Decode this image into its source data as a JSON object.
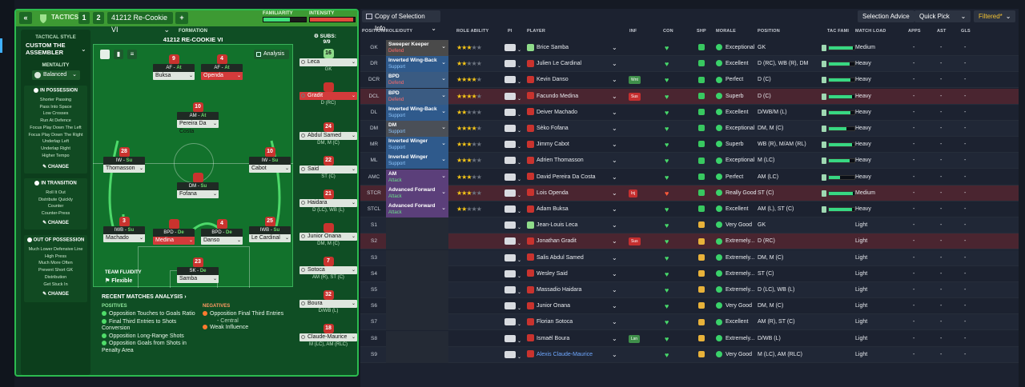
{
  "header": {
    "back_icon": "chevron-double-left",
    "tactics_label": "TACTICS",
    "tactic_slots": [
      "1",
      "2"
    ],
    "tactic_name": "41212 Re-Cookie VI",
    "add_label": "+",
    "familiarity_label": "FAMILIARITY",
    "intensity_label": "INTENSITY",
    "familiarity_level": 0.62,
    "intensity_level": 0.97
  },
  "sidebar": {
    "style_label": "TACTICAL STYLE",
    "style_name": "CUSTOM THE ASSEMBLER",
    "mentality_label": "MENTALITY",
    "mentality_value": "Balanced",
    "in_possession": {
      "title": "IN POSSESSION",
      "items": [
        "Shorter Passing",
        "Pass Into Space",
        "Low Crosses",
        "Run At Defence",
        "Focus Play Down The Left",
        "Focus Play Down The Right",
        "Underlap Left",
        "Underlap Right",
        "Higher Tempo"
      ],
      "change": "CHANGE"
    },
    "in_transition": {
      "title": "IN TRANSITION",
      "items": [
        "Roll It Out",
        "Distribute Quickly",
        "Counter",
        "Counter-Press"
      ],
      "change": "CHANGE"
    },
    "out_of_possession": {
      "title": "OUT OF POSSESSION",
      "items": [
        "Much Lower Defensive Line",
        "High Press",
        "Much More Often",
        "Prevent Short GK",
        "Distribution",
        "Get Stuck In"
      ],
      "change": "CHANGE"
    }
  },
  "pitch": {
    "formation_label": "FORMATION",
    "formation_name": "41212 RE-COOKIE VI",
    "analysis_label": "Analysis",
    "team_fluidity_label": "TEAM FLUIDITY",
    "team_fluidity_value": "Flexible",
    "players": [
      {
        "num": "9",
        "role": "AF",
        "duty": "At",
        "name": "Buksa",
        "red": false
      },
      {
        "num": "4",
        "role": "AF",
        "duty": "At",
        "name": "Openda",
        "red": true
      },
      {
        "num": "10",
        "role": "AM",
        "duty": "At",
        "name": "Pereira Da Costa",
        "red": false
      },
      {
        "num": "28",
        "role": "IW",
        "duty": "Su",
        "name": "Thomasson",
        "red": false
      },
      {
        "num": "10",
        "role": "IW",
        "duty": "Su",
        "name": "Cabot",
        "red": false
      },
      {
        "num": "",
        "role": "DM",
        "duty": "Su",
        "name": "Fofana",
        "red": false
      },
      {
        "num": "3",
        "role": "IWB",
        "duty": "Su",
        "name": "Machado",
        "red": false
      },
      {
        "num": "",
        "role": "BPD",
        "duty": "De",
        "name": "Medina",
        "red": true
      },
      {
        "num": "4",
        "role": "BPD",
        "duty": "De",
        "name": "Danso",
        "red": false
      },
      {
        "num": "25",
        "role": "IWB",
        "duty": "Su",
        "name": "Le Cardinal",
        "red": false
      },
      {
        "num": "23",
        "role": "SK",
        "duty": "De",
        "name": "Samba",
        "red": false
      }
    ]
  },
  "subs": {
    "label": "SUBS:",
    "count": "9/9",
    "players": [
      {
        "num": "16",
        "name": "Leca",
        "pos": "GK",
        "red": false
      },
      {
        "num": "",
        "name": "Gradit",
        "pos": "D (RC)",
        "red": true
      },
      {
        "num": "24",
        "name": "Abdul Samed",
        "pos": "DM, M (C)",
        "red": false
      },
      {
        "num": "22",
        "name": "Said",
        "pos": "ST (C)",
        "red": false
      },
      {
        "num": "21",
        "name": "Haidara",
        "pos": "D (LC), WB (L)",
        "red": false
      },
      {
        "num": "",
        "name": "Junior Onana",
        "pos": "DM, M (C)",
        "red": false
      },
      {
        "num": "7",
        "name": "Sotoca",
        "pos": "AM (R), ST (C)",
        "red": false
      },
      {
        "num": "32",
        "name": "Boura",
        "pos": "D/WB (L)",
        "red": false
      },
      {
        "num": "18",
        "name": "Claude-Maurice",
        "pos": "M (LC), AM (RLC)",
        "red": false
      }
    ]
  },
  "analysis": {
    "title": "RECENT MATCHES ANALYSIS",
    "positives_label": "POSITIVES",
    "positives": [
      "Opposition Touches to Goals Ratio",
      "Final Third Entries to Shots Conversion",
      "Opposition Long-Range Shots",
      "Opposition Goals from Shots in Penalty Area"
    ],
    "negatives_label": "NEGATIVES",
    "negatives": [
      "Opposition Final Third Entries",
      "- Central",
      "Weak Influence"
    ]
  },
  "toolbar": {
    "view_name": "Copy of Selection Info",
    "selection_advice": "Selection Advice",
    "quick_pick": "Quick Pick",
    "filtered": "Filtered*"
  },
  "table": {
    "headers": [
      "POSITION/ROLE/DUTY",
      "ROLE ABILITY",
      "PI",
      "PLAYER",
      "INF",
      "CON",
      "SHP",
      "MORALE",
      "POSITION",
      "TAC FAMI",
      "MATCH LOAD",
      "APPS",
      "AST",
      "GLS"
    ],
    "rows": [
      {
        "pos": "GK",
        "role": "Sweeper Keeper",
        "duty": "Defend",
        "stars": 3,
        "player": "Brice Samba",
        "inf": "",
        "morale": "Exceptional",
        "position": "GK",
        "fam": 0.95,
        "load": "Medium",
        "apps": "-",
        "ast": "-",
        "gls": "-"
      },
      {
        "pos": "DR",
        "role": "Inverted Wing-Back",
        "duty": "Support",
        "stars": 2,
        "player": "Julien Le Cardinal",
        "inf": "",
        "morale": "Excellent",
        "position": "D (RC), WB (R), DM",
        "fam": 0.8,
        "load": "Heavy",
        "apps": "-",
        "ast": "-",
        "gls": "-"
      },
      {
        "pos": "DCR",
        "role": "BPD",
        "duty": "Defend",
        "stars": 3.5,
        "player": "Kevin Danso",
        "inf": "Wnt",
        "morale": "Perfect",
        "position": "D (C)",
        "fam": 0.85,
        "load": "Heavy",
        "apps": "-",
        "ast": "-",
        "gls": "-"
      },
      {
        "pos": "DCL",
        "role": "BPD",
        "duty": "Defend",
        "stars": 3.5,
        "player": "Facundo Medina",
        "inf": "Sus",
        "morale": "Superb",
        "position": "D (C)",
        "fam": 0.9,
        "load": "Heavy",
        "apps": "-",
        "ast": "-",
        "gls": "-"
      },
      {
        "pos": "DL",
        "role": "Inverted Wing-Back",
        "duty": "Support",
        "stars": 2,
        "player": "Deiver Machado",
        "inf": "",
        "morale": "Excellent",
        "position": "D/WB/M (L)",
        "fam": 0.85,
        "load": "Heavy",
        "apps": "-",
        "ast": "-",
        "gls": "-"
      },
      {
        "pos": "DM",
        "role": "DM",
        "duty": "Support",
        "stars": 3.5,
        "player": "Sèko Fofana",
        "inf": "",
        "morale": "Exceptional",
        "position": "DM, M (C)",
        "fam": 0.7,
        "load": "Heavy",
        "apps": "-",
        "ast": "-",
        "gls": "-"
      },
      {
        "pos": "MR",
        "role": "Inverted Winger",
        "duty": "Support",
        "stars": 3,
        "player": "Jimmy Cabot",
        "inf": "",
        "morale": "Superb",
        "position": "WB (R), M/AM (RL)",
        "fam": 0.9,
        "load": "Heavy",
        "apps": "-",
        "ast": "-",
        "gls": "-"
      },
      {
        "pos": "ML",
        "role": "Inverted Winger",
        "duty": "Support",
        "stars": 3,
        "player": "Adrien Thomasson",
        "inf": "",
        "morale": "Exceptional",
        "position": "M (LC)",
        "fam": 0.8,
        "load": "Heavy",
        "apps": "-",
        "ast": "-",
        "gls": "-"
      },
      {
        "pos": "AMC",
        "role": "AM",
        "duty": "Attack",
        "stars": 3,
        "player": "David Pereira Da Costa",
        "inf": "",
        "morale": "Perfect",
        "position": "AM (LC)",
        "fam": 0.45,
        "load": "Heavy",
        "apps": "-",
        "ast": "-",
        "gls": "-"
      },
      {
        "pos": "STCR",
        "role": "Advanced Forward",
        "duty": "Attack",
        "stars": 3,
        "player": "Lois Openda",
        "inf": "Inj",
        "morale": "Really Good",
        "position": "ST (C)",
        "fam": 0.95,
        "load": "Medium",
        "apps": "-",
        "ast": "-",
        "gls": "-"
      },
      {
        "pos": "STCL",
        "role": "Advanced Forward",
        "duty": "Attack",
        "stars": 2,
        "player": "Adam Buksa",
        "inf": "",
        "morale": "Excellent",
        "position": "AM (L), ST (C)",
        "fam": 0.9,
        "load": "Heavy",
        "apps": "-",
        "ast": "-",
        "gls": "-"
      },
      {
        "pos": "S1",
        "role": "",
        "duty": "",
        "stars": 0,
        "player": "Jean-Louis Leca",
        "inf": "",
        "morale": "Very Good",
        "position": "GK",
        "fam": 0,
        "load": "Light",
        "apps": "-",
        "ast": "-",
        "gls": "-"
      },
      {
        "pos": "S2",
        "role": "",
        "duty": "",
        "stars": 0,
        "player": "Jonathan Gradit",
        "inf": "Sus",
        "morale": "Extremely...",
        "position": "D (RC)",
        "fam": 0,
        "load": "Light",
        "apps": "-",
        "ast": "-",
        "gls": "-"
      },
      {
        "pos": "S3",
        "role": "",
        "duty": "",
        "stars": 0,
        "player": "Salis Abdul Samed",
        "inf": "",
        "morale": "Extremely...",
        "position": "DM, M (C)",
        "fam": 0,
        "load": "Light",
        "apps": "-",
        "ast": "-",
        "gls": "-"
      },
      {
        "pos": "S4",
        "role": "",
        "duty": "",
        "stars": 0,
        "player": "Wesley Said",
        "inf": "",
        "morale": "Extremely...",
        "position": "ST (C)",
        "fam": 0,
        "load": "Light",
        "apps": "-",
        "ast": "-",
        "gls": "-"
      },
      {
        "pos": "S5",
        "role": "",
        "duty": "",
        "stars": 0,
        "player": "Massadio Haidara",
        "inf": "",
        "morale": "Extremely...",
        "position": "D (LC), WB (L)",
        "fam": 0,
        "load": "Light",
        "apps": "-",
        "ast": "-",
        "gls": "-"
      },
      {
        "pos": "S6",
        "role": "",
        "duty": "",
        "stars": 0,
        "player": "Junior Onana",
        "inf": "",
        "morale": "Very Good",
        "position": "DM, M (C)",
        "fam": 0,
        "load": "Light",
        "apps": "-",
        "ast": "-",
        "gls": "-"
      },
      {
        "pos": "S7",
        "role": "",
        "duty": "",
        "stars": 0,
        "player": "Florian Sotoca",
        "inf": "",
        "morale": "Excellent",
        "position": "AM (R), ST (C)",
        "fam": 0,
        "load": "Light",
        "apps": "-",
        "ast": "-",
        "gls": "-"
      },
      {
        "pos": "S8",
        "role": "",
        "duty": "",
        "stars": 0,
        "player": "Ismaël Boura",
        "inf": "Lsn",
        "morale": "Extremely...",
        "position": "D/WB (L)",
        "fam": 0,
        "load": "Light",
        "apps": "-",
        "ast": "-",
        "gls": "-"
      },
      {
        "pos": "S9",
        "role": "",
        "duty": "",
        "stars": 0,
        "player": "Alexis Claude-Maurice",
        "inf": "",
        "morale": "Very Good",
        "position": "M (LC), AM (RLC)",
        "fam": 0,
        "load": "Light",
        "apps": "-",
        "ast": "-",
        "gls": "-"
      }
    ]
  }
}
